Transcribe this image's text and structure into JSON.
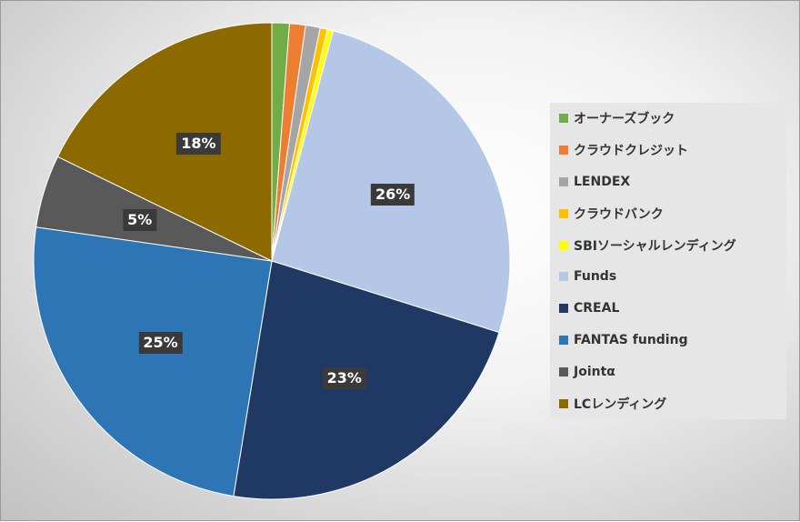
{
  "chart_data": {
    "type": "pie",
    "title": "",
    "start_angle_deg": 0,
    "direction": "clockwise",
    "slices": [
      {
        "label": "オーナーズブック",
        "value": 1.2,
        "color": "#70ad47"
      },
      {
        "label": "クラウドクレジット",
        "value": 1.1,
        "color": "#ed7d31"
      },
      {
        "label": "LENDEX",
        "value": 1.0,
        "color": "#a5a5a5"
      },
      {
        "label": "クラウドバンク",
        "value": 0.5,
        "color": "#ffc000"
      },
      {
        "label": "SBIソーシャルレンディング",
        "value": 0.4,
        "color": "#ffff00"
      },
      {
        "label": "Funds",
        "value": 26,
        "color": "#b4c7e7",
        "data_label": "26%"
      },
      {
        "label": "CREAL",
        "value": 23,
        "color": "#203864",
        "data_label": "23%"
      },
      {
        "label": "FANTAS funding",
        "value": 25,
        "color": "#2e75b6",
        "data_label": "25%"
      },
      {
        "label": "Jointα",
        "value": 5,
        "color": "#595959",
        "data_label": "5%"
      },
      {
        "label": "LCレンディング",
        "value": 18,
        "color": "#8c6a00",
        "data_label": "18%"
      }
    ],
    "legend_position": "right"
  }
}
